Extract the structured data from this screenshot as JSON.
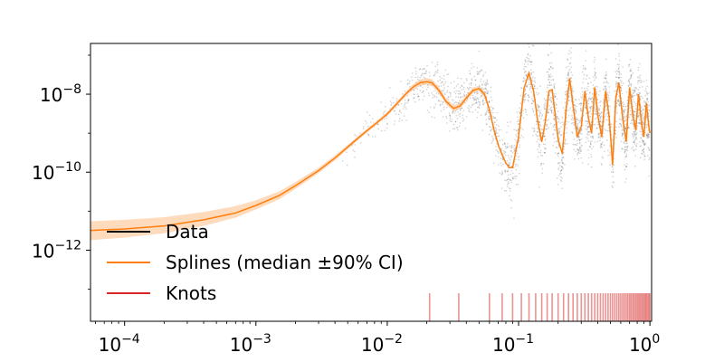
{
  "chart_data": {
    "type": "scatter",
    "xscale": "log",
    "yscale": "log",
    "xlim": [
      5.5e-05,
      1.03
    ],
    "ylim": [
      1.5e-14,
      2e-07
    ],
    "title": "",
    "xlabel": "",
    "ylabel": "",
    "x_ticks": [
      {
        "base": "10",
        "exp": "−4",
        "value": 0.0001
      },
      {
        "base": "10",
        "exp": "−3",
        "value": 0.001
      },
      {
        "base": "10",
        "exp": "−2",
        "value": 0.01
      },
      {
        "base": "10",
        "exp": "−1",
        "value": 0.1
      },
      {
        "base": "10",
        "exp": "0",
        "value": 1
      }
    ],
    "y_ticks": [
      {
        "base": "10",
        "exp": "−8",
        "value": 1e-08
      },
      {
        "base": "10",
        "exp": "−10",
        "value": 1e-10
      },
      {
        "base": "10",
        "exp": "−12",
        "value": 1e-12
      }
    ],
    "legend": {
      "location": "lower-left",
      "entries": [
        {
          "label": "Data",
          "color": "#000000"
        },
        {
          "label": "Splines (median ±90% CI)",
          "color": "#ff7f0e"
        },
        {
          "label": "Knots",
          "color": "#d62728"
        }
      ]
    },
    "spline_median": {
      "x": [
        5.5e-05,
        0.0001,
        0.0002,
        0.0004,
        0.0007,
        0.001,
        0.0015,
        0.002,
        0.003,
        0.004,
        0.005,
        0.006,
        0.007,
        0.008,
        0.01,
        0.012,
        0.014,
        0.016,
        0.018,
        0.02,
        0.022,
        0.025,
        0.028,
        0.032,
        0.036,
        0.04,
        0.045,
        0.05,
        0.055,
        0.06,
        0.065,
        0.07,
        0.075,
        0.08,
        0.085,
        0.09,
        0.1,
        0.11,
        0.12,
        0.13,
        0.14,
        0.15,
        0.16,
        0.17,
        0.18,
        0.19,
        0.2,
        0.215,
        0.23,
        0.245,
        0.26,
        0.28,
        0.3,
        0.32,
        0.34,
        0.36,
        0.38,
        0.4,
        0.43,
        0.46,
        0.49,
        0.52,
        0.55,
        0.58,
        0.62,
        0.66,
        0.7,
        0.74,
        0.78,
        0.82,
        0.86,
        0.9,
        0.94,
        0.98,
        1.0
      ],
      "y": [
        3.2e-12,
        3.5e-12,
        4.2e-12,
        6e-12,
        9e-12,
        1.4e-11,
        2.5e-11,
        4.5e-11,
        1.1e-10,
        2.3e-10,
        4.4e-10,
        7.5e-10,
        1.15e-09,
        1.65e-09,
        3.1e-09,
        6e-09,
        1.05e-08,
        1.6e-08,
        2e-08,
        2.1e-08,
        1.95e-08,
        1.2e-08,
        6.5e-09,
        4.3e-09,
        5e-09,
        8e-09,
        1.25e-08,
        1.4e-08,
        1e-08,
        4e-09,
        1.2e-09,
        5e-10,
        2.8e-10,
        1.7e-10,
        1.3e-10,
        1.3e-10,
        8e-10,
        1.4e-08,
        3.5e-08,
        1.2e-08,
        2e-09,
        6e-10,
        2e-09,
        1.2e-08,
        1.3e-08,
        3e-09,
        7e-10,
        3e-10,
        4e-09,
        2.5e-08,
        5e-09,
        8e-10,
        1.5e-09,
        1.2e-08,
        2.5e-09,
        1e-09,
        1.5e-08,
        3e-09,
        8e-10,
        1.2e-08,
        2.5e-09,
        1.5e-10,
        8e-09,
        2e-08,
        2.5e-09,
        6e-10,
        1.5e-08,
        3e-09,
        1.2e-09,
        1e-08,
        2e-09,
        8e-10,
        6e-09,
        1.5e-09,
        1e-09
      ]
    },
    "spline_ci": {
      "x": [
        5.5e-05,
        0.0001,
        0.0002,
        0.0004,
        0.0007,
        0.001,
        0.0015,
        0.002,
        0.003,
        0.004,
        0.005,
        0.006,
        0.008,
        0.01,
        0.012,
        0.014,
        0.016,
        0.018,
        0.02,
        0.022,
        0.025,
        0.028,
        0.032,
        0.036,
        0.04,
        0.045,
        0.05,
        0.055,
        0.06
      ],
      "lower": [
        1.8e-12,
        2.1e-12,
        2.7e-12,
        4.2e-12,
        6.8e-12,
        1.1e-11,
        2e-11,
        3.7e-11,
        9.5e-11,
        2e-10,
        3.9e-10,
        6.7e-10,
        1.5e-09,
        2.8e-09,
        5.3e-09,
        9e-09,
        1.35e-08,
        1.65e-08,
        1.75e-08,
        1.6e-08,
        1e-08,
        5.5e-09,
        3.6e-09,
        4.2e-09,
        6.8e-09,
        1.05e-08,
        1.2e-08,
        8.5e-09,
        3.4e-09
      ],
      "upper": [
        5.5e-12,
        6e-12,
        7e-12,
        9.5e-12,
        1.35e-11,
        1.9e-11,
        3.2e-11,
        5.6e-11,
        1.3e-10,
        2.7e-10,
        5e-10,
        8.4e-10,
        1.85e-09,
        3.5e-09,
        6.8e-09,
        1.2e-08,
        1.9e-08,
        2.4e-08,
        2.6e-08,
        2.4e-08,
        1.45e-08,
        7.8e-09,
        5.2e-09,
        6e-09,
        9.5e-09,
        1.5e-08,
        1.65e-08,
        1.2e-08,
        4.8e-09
      ]
    },
    "knots": [
      0.021,
      0.035,
      0.06,
      0.075,
      0.09,
      0.105,
      0.12,
      0.135,
      0.15,
      0.165,
      0.18,
      0.2,
      0.22,
      0.24,
      0.26,
      0.28,
      0.3,
      0.32,
      0.34,
      0.36,
      0.38,
      0.4,
      0.42,
      0.44,
      0.46,
      0.48,
      0.5,
      0.52,
      0.54,
      0.56,
      0.58,
      0.6,
      0.62,
      0.64,
      0.66,
      0.68,
      0.7,
      0.72,
      0.74,
      0.76,
      0.78,
      0.8,
      0.82,
      0.84,
      0.86,
      0.88,
      0.9,
      0.92,
      0.94,
      0.96,
      0.98,
      1.0
    ],
    "data_points_note": "",
    "data_scatter_seed": 7,
    "colors": {
      "data": "#000000",
      "spline": "#ff7f0e",
      "band": "#ffbe86",
      "knot": "#d62728"
    }
  }
}
